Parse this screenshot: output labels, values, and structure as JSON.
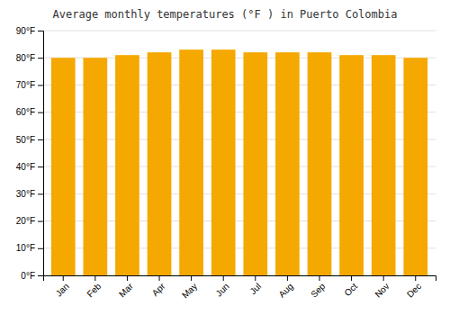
{
  "chart_data": {
    "type": "bar",
    "title": "Average monthly temperatures (°F ) in Puerto Colombia",
    "categories": [
      "Jan",
      "Feb",
      "Mar",
      "Apr",
      "May",
      "Jun",
      "Jul",
      "Aug",
      "Sep",
      "Oct",
      "Nov",
      "Dec"
    ],
    "values": [
      80,
      80,
      81,
      82,
      83,
      83,
      82,
      82,
      82,
      81,
      81,
      80
    ],
    "color": "#F5A800",
    "ylim": [
      0,
      90
    ],
    "yticks": [
      {
        "value": 0,
        "label": "0°F"
      },
      {
        "value": 10,
        "label": "10°F"
      },
      {
        "value": 20,
        "label": "20°F"
      },
      {
        "value": 30,
        "label": "30°F"
      },
      {
        "value": 40,
        "label": "40°F"
      },
      {
        "value": 50,
        "label": "50°F"
      },
      {
        "value": 60,
        "label": "60°F"
      },
      {
        "value": 70,
        "label": "70°F"
      },
      {
        "value": 80,
        "label": "80°F"
      },
      {
        "value": 90,
        "label": "90°F"
      }
    ],
    "grid": true
  }
}
